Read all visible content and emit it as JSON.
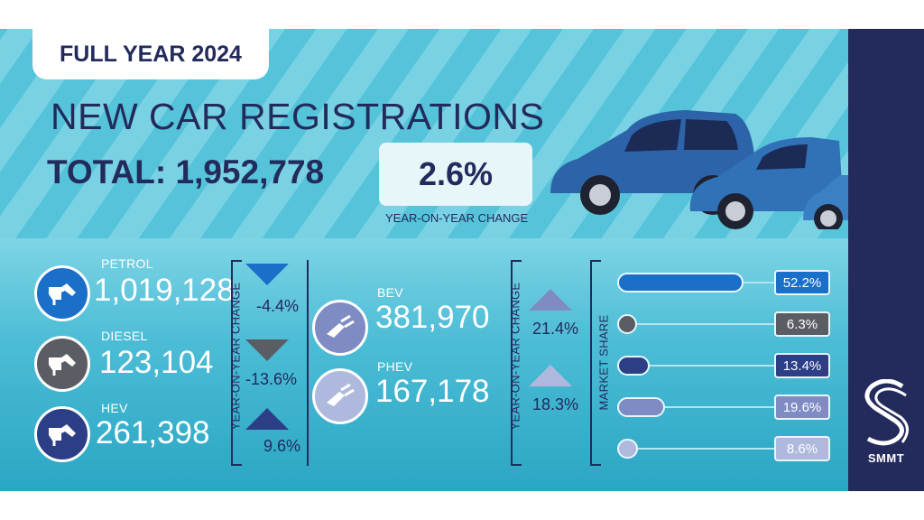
{
  "header": {
    "badge": "FULL YEAR 2024",
    "title": "NEW CAR REGISTRATIONS",
    "total_label": "TOTAL:",
    "total_value": "1,952,778",
    "yoy_value": "2.6%",
    "yoy_label": "YEAR-ON-YEAR CHANGE"
  },
  "fuel_left": [
    {
      "label": "PETROL",
      "value": "1,019,128",
      "change": "-4.4%",
      "direction": "down",
      "color": "#1a6fc9"
    },
    {
      "label": "DIESEL",
      "value": "123,104",
      "change": "-13.6%",
      "direction": "down",
      "color": "#5a5d63"
    },
    {
      "label": "HEV",
      "value": "261,398",
      "change": "9.6%",
      "direction": "up",
      "color": "#2c3f86"
    }
  ],
  "fuel_right": [
    {
      "label": "BEV",
      "value": "381,970",
      "change": "21.4%",
      "direction": "up",
      "color": "#7f8bc3"
    },
    {
      "label": "PHEV",
      "value": "167,178",
      "change": "18.3%",
      "direction": "up",
      "color": "#aeb9dd"
    }
  ],
  "yoy_axis_label": "YEAR-ON-YEAR CHANGE",
  "market_share": {
    "label": "MARKET SHARE",
    "items": [
      {
        "value": 52.2,
        "text": "52.2%",
        "color": "#1a6fc9"
      },
      {
        "value": 6.3,
        "text": "6.3%",
        "color": "#5a5d63"
      },
      {
        "value": 13.4,
        "text": "13.4%",
        "color": "#2c3f86"
      },
      {
        "value": 19.6,
        "text": "19.6%",
        "color": "#7f8bc3"
      },
      {
        "value": 8.6,
        "text": "8.6%",
        "color": "#aeb9dd"
      }
    ]
  },
  "brand": {
    "name": "SMMT",
    "color": "#232a5c"
  }
}
